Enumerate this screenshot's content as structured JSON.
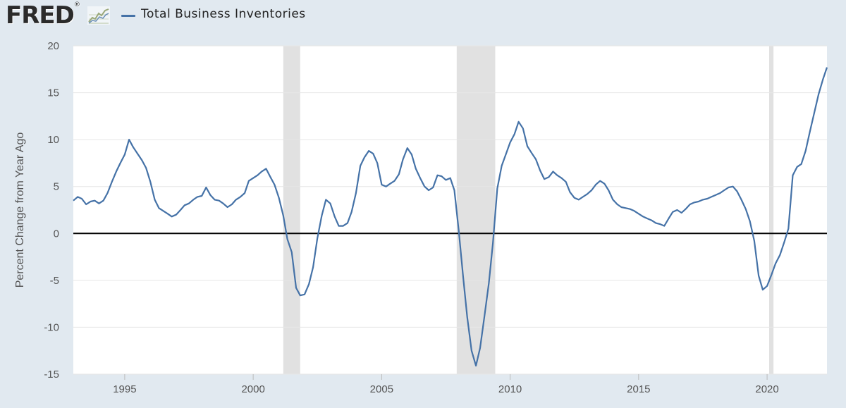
{
  "header": {
    "logo_text": "FRED",
    "logo_registered": "®",
    "logo_icon": "trend-line-graph-icon"
  },
  "legend": {
    "label": "Total Business Inventories",
    "color": "#4572a7"
  },
  "chart_data": {
    "type": "line",
    "title": "",
    "ylabel": "Percent Change from Year Ago",
    "xlim": [
      1993.0,
      2022.33
    ],
    "ylim": [
      -15,
      20
    ],
    "yticks": [
      -15,
      -10,
      -5,
      0,
      5,
      10,
      15,
      20
    ],
    "xticks": [
      1995,
      2000,
      2005,
      2010,
      2015,
      2020
    ],
    "grid": "horizontal",
    "zero_line": true,
    "recessions": [
      [
        2001.17,
        2001.83
      ],
      [
        2007.92,
        2009.42
      ],
      [
        2020.08,
        2020.25
      ]
    ],
    "colors": {
      "line": "#4572a7",
      "recession": "#e1e1e1",
      "zero_line": "#000000",
      "plot_bg": "#ffffff"
    },
    "series": [
      {
        "name": "Total Business Inventories",
        "x": [
          1993.0,
          1993.17,
          1993.33,
          1993.5,
          1993.67,
          1993.83,
          1994.0,
          1994.17,
          1994.33,
          1994.5,
          1994.67,
          1994.83,
          1995.0,
          1995.17,
          1995.33,
          1995.5,
          1995.67,
          1995.83,
          1996.0,
          1996.17,
          1996.33,
          1996.5,
          1996.67,
          1996.83,
          1997.0,
          1997.17,
          1997.33,
          1997.5,
          1997.67,
          1997.83,
          1998.0,
          1998.17,
          1998.33,
          1998.5,
          1998.67,
          1998.83,
          1999.0,
          1999.17,
          1999.33,
          1999.5,
          1999.67,
          1999.83,
          2000.0,
          2000.17,
          2000.33,
          2000.5,
          2000.67,
          2000.83,
          2001.0,
          2001.17,
          2001.33,
          2001.5,
          2001.67,
          2001.83,
          2002.0,
          2002.17,
          2002.33,
          2002.5,
          2002.67,
          2002.83,
          2003.0,
          2003.17,
          2003.33,
          2003.5,
          2003.67,
          2003.83,
          2004.0,
          2004.17,
          2004.33,
          2004.5,
          2004.67,
          2004.83,
          2005.0,
          2005.17,
          2005.33,
          2005.5,
          2005.67,
          2005.83,
          2006.0,
          2006.17,
          2006.33,
          2006.5,
          2006.67,
          2006.83,
          2007.0,
          2007.17,
          2007.33,
          2007.5,
          2007.67,
          2007.83,
          2008.0,
          2008.17,
          2008.33,
          2008.5,
          2008.67,
          2008.83,
          2009.0,
          2009.17,
          2009.33,
          2009.5,
          2009.67,
          2009.83,
          2010.0,
          2010.17,
          2010.33,
          2010.5,
          2010.67,
          2010.83,
          2011.0,
          2011.17,
          2011.33,
          2011.5,
          2011.67,
          2011.83,
          2012.0,
          2012.17,
          2012.33,
          2012.5,
          2012.67,
          2012.83,
          2013.0,
          2013.17,
          2013.33,
          2013.5,
          2013.67,
          2013.83,
          2014.0,
          2014.17,
          2014.33,
          2014.5,
          2014.67,
          2014.83,
          2015.0,
          2015.17,
          2015.33,
          2015.5,
          2015.67,
          2015.83,
          2016.0,
          2016.17,
          2016.33,
          2016.5,
          2016.67,
          2016.83,
          2017.0,
          2017.17,
          2017.33,
          2017.5,
          2017.67,
          2017.83,
          2018.0,
          2018.17,
          2018.33,
          2018.5,
          2018.67,
          2018.83,
          2019.0,
          2019.17,
          2019.33,
          2019.5,
          2019.67,
          2019.83,
          2020.0,
          2020.17,
          2020.33,
          2020.5,
          2020.67,
          2020.83,
          2021.0,
          2021.17,
          2021.33,
          2021.5,
          2021.67,
          2021.83,
          2022.0,
          2022.17,
          2022.33
        ],
        "y": [
          3.5,
          3.9,
          3.7,
          3.1,
          3.4,
          3.5,
          3.2,
          3.5,
          4.3,
          5.5,
          6.6,
          7.5,
          8.4,
          10.0,
          9.2,
          8.5,
          7.8,
          7.0,
          5.5,
          3.6,
          2.7,
          2.4,
          2.1,
          1.8,
          2.0,
          2.5,
          3.0,
          3.2,
          3.6,
          3.9,
          4.0,
          4.9,
          4.1,
          3.6,
          3.5,
          3.2,
          2.8,
          3.1,
          3.6,
          3.9,
          4.3,
          5.6,
          5.9,
          6.2,
          6.6,
          6.9,
          6.0,
          5.2,
          3.8,
          1.9,
          -0.6,
          -2.0,
          -5.8,
          -6.6,
          -6.5,
          -5.4,
          -3.6,
          -0.5,
          1.9,
          3.6,
          3.2,
          1.8,
          0.8,
          0.8,
          1.1,
          2.3,
          4.3,
          7.2,
          8.1,
          8.8,
          8.5,
          7.5,
          5.2,
          5.0,
          5.3,
          5.6,
          6.3,
          7.9,
          9.1,
          8.4,
          6.9,
          5.9,
          5.0,
          4.6,
          4.9,
          6.2,
          6.1,
          5.7,
          5.9,
          4.6,
          0.3,
          -4.6,
          -8.9,
          -12.5,
          -14.1,
          -12.2,
          -8.8,
          -5.3,
          -1.0,
          4.8,
          7.2,
          8.4,
          9.7,
          10.6,
          11.9,
          11.2,
          9.3,
          8.6,
          7.9,
          6.7,
          5.8,
          6.0,
          6.6,
          6.2,
          5.9,
          5.5,
          4.4,
          3.8,
          3.6,
          3.9,
          4.2,
          4.6,
          5.2,
          5.6,
          5.3,
          4.6,
          3.6,
          3.1,
          2.8,
          2.7,
          2.6,
          2.4,
          2.1,
          1.8,
          1.6,
          1.4,
          1.1,
          1.0,
          0.8,
          1.6,
          2.3,
          2.5,
          2.2,
          2.6,
          3.1,
          3.3,
          3.4,
          3.6,
          3.7,
          3.9,
          4.1,
          4.3,
          4.6,
          4.9,
          5.0,
          4.5,
          3.6,
          2.6,
          1.3,
          -0.8,
          -4.5,
          -6.0,
          -5.6,
          -4.4,
          -3.2,
          -2.3,
          -0.9,
          0.5,
          6.2,
          7.1,
          7.4,
          8.8,
          10.9,
          12.8,
          14.8,
          16.4,
          17.7
        ]
      }
    ]
  }
}
